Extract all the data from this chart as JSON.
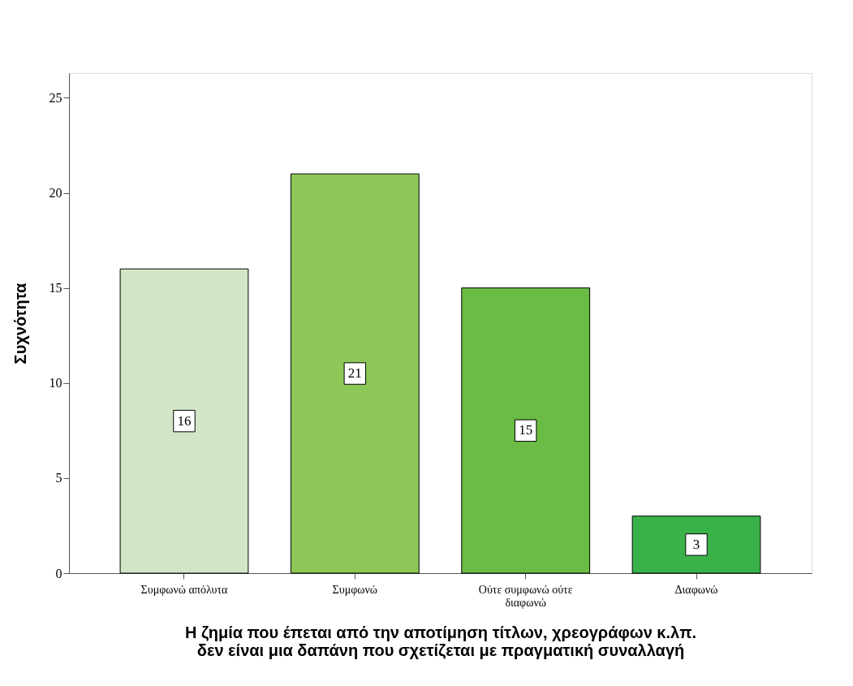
{
  "chart_data": {
    "type": "bar",
    "xlabel": "Η ζημία που έπεται από την αποτίμηση τίτλων, χρεογράφων κ.λπ. δεν είναι μια δαπάνη που σχετίζεται με πραγματική συναλλαγή",
    "ylabel": "Συχνότητα",
    "categories": [
      "Συμφωνώ απόλυτα",
      "Συμφωνώ",
      "Ούτε συμφωνώ ούτε διαφωνώ",
      "Διαφωνώ"
    ],
    "values": [
      16,
      21,
      15,
      3
    ],
    "colors": [
      "#d2e6c7",
      "#8cc757",
      "#6abc45",
      "#3ab24a"
    ],
    "ylim": [
      0,
      26.3
    ],
    "yticks": [
      0,
      5,
      10,
      15,
      20,
      25
    ],
    "grid": false,
    "data_labels": true
  }
}
